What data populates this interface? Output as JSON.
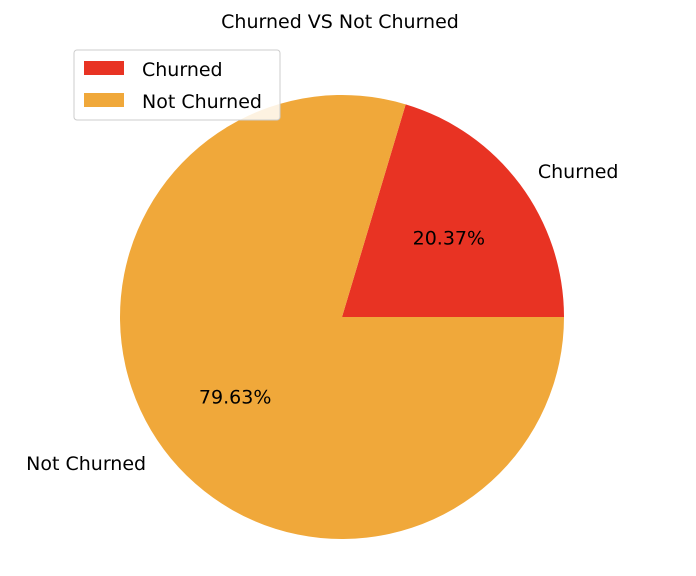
{
  "chart_data": {
    "type": "pie",
    "title": "Churned VS Not Churned",
    "categories": [
      "Churned",
      "Not Churned"
    ],
    "values": [
      20.37,
      79.63
    ],
    "percent_labels": [
      "20.37%",
      "79.63%"
    ],
    "colors": [
      "#e83323",
      "#f0a83a"
    ],
    "start_angle_deg": 0,
    "direction": "counterclockwise",
    "legend": {
      "placement": "upper-left",
      "entries": [
        "Churned",
        "Not Churned"
      ]
    }
  }
}
